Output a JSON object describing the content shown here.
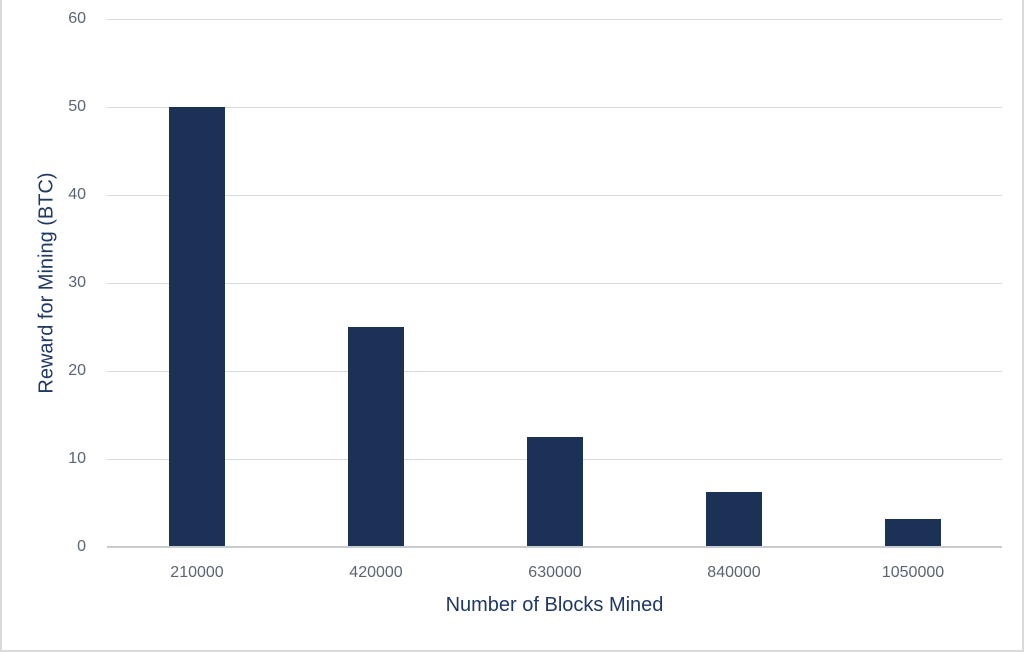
{
  "figure": {
    "background": "#ffffff",
    "border_color": "#dadada"
  },
  "chart_data": {
    "type": "bar",
    "title": "",
    "xlabel": "Number of Blocks Mined",
    "ylabel": "Reward for Mining (BTC)",
    "categories": [
      "210000",
      "420000",
      "630000",
      "840000",
      "1050000"
    ],
    "values": [
      50,
      25,
      12.5,
      6.25,
      3.125
    ],
    "ylim": [
      0,
      60
    ],
    "yticks": [
      0,
      10,
      20,
      30,
      40,
      50,
      60
    ],
    "grid": true,
    "legend": false,
    "bar_color": "#1c3156",
    "gridline_color": "#d9d9d9",
    "axis_line_color": "#c9cccf",
    "tick_label_color": "#5a6472",
    "axis_title_color": "#1f3864"
  }
}
